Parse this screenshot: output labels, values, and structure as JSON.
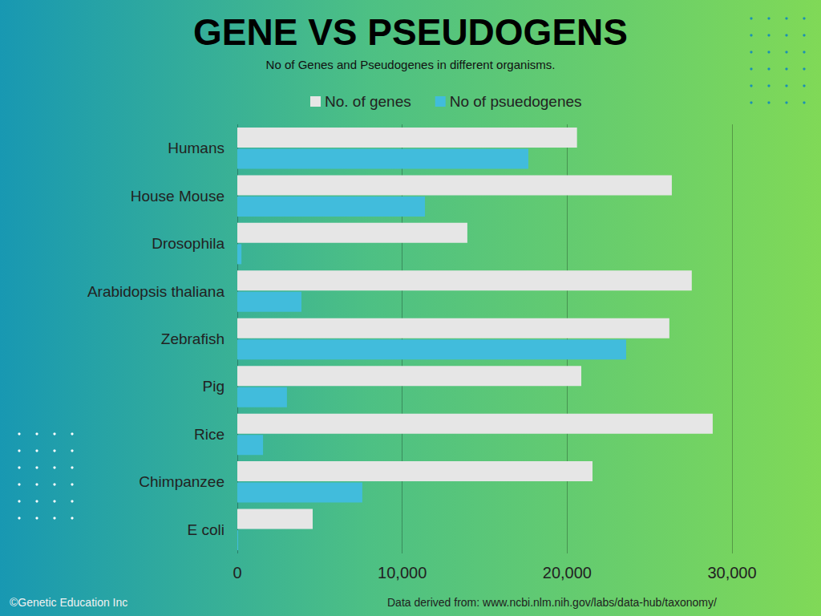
{
  "chart_data": {
    "type": "bar",
    "orientation": "horizontal",
    "title": "GENE VS PSEUDOGENS",
    "subtitle": "No of Genes and Pseudogenes in different organisms.",
    "categories": [
      "Humans",
      "House Mouse",
      "Drosophila",
      "Arabidopsis thaliana",
      "Zebrafish",
      "Pig",
      "Rice",
      "Chimpanzee",
      "E coli"
    ],
    "series": [
      {
        "name": "No. of genes",
        "color": "#e6e6e6",
        "values": [
          20600,
          26350,
          13950,
          27560,
          26200,
          20860,
          28830,
          21540,
          4570
        ]
      },
      {
        "name": "No of psuedogenes",
        "color": "#41bcdc",
        "values": [
          17650,
          11380,
          250,
          3890,
          23580,
          3010,
          1560,
          7580,
          50
        ]
      }
    ],
    "xlim": [
      0,
      30000
    ],
    "xticks": [
      0,
      {
        "value": 10000,
        "label": "10,000"
      },
      {
        "value": 20000,
        "label": "20,000"
      },
      {
        "value": 30000,
        "label": "30,000"
      }
    ],
    "grid": true,
    "legend": "top",
    "annotations": [
      "©Genetic Education Inc",
      "Data derived from: www.ncbi.nlm.nih.gov/labs/data-hub/taxonomy/"
    ]
  }
}
